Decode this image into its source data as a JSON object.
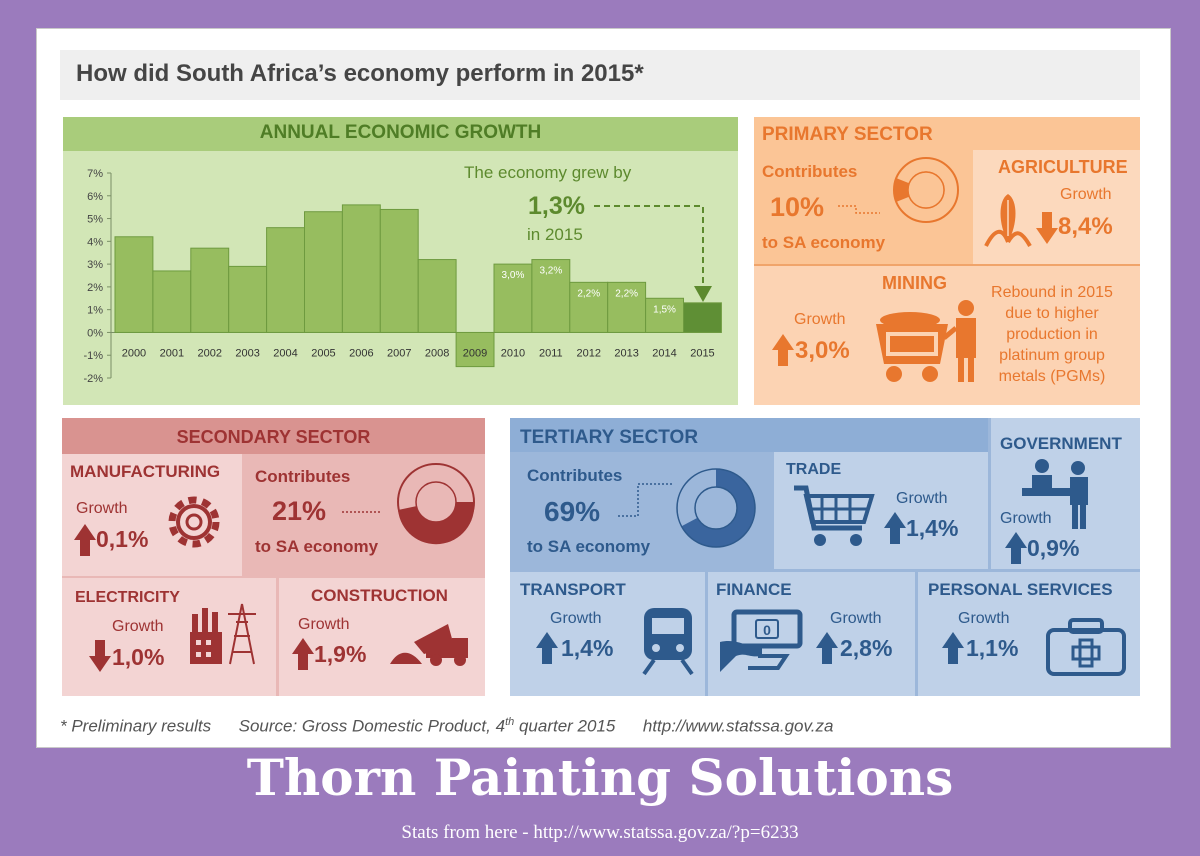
{
  "title": "How did South Africa’s economy perform in 2015*",
  "annual": {
    "title": "ANNUAL ECONOMIC GROWTH",
    "callout_line1": "The economy grew by",
    "callout_value": "1,3%",
    "callout_line3": "in 2015"
  },
  "chart_data": {
    "type": "bar",
    "title": "ANNUAL ECONOMIC GROWTH",
    "categories": [
      "2000",
      "2001",
      "2002",
      "2003",
      "2004",
      "2005",
      "2006",
      "2007",
      "2008",
      "2009",
      "2010",
      "2011",
      "2012",
      "2013",
      "2014",
      "2015"
    ],
    "values": [
      4.2,
      2.7,
      3.7,
      2.9,
      4.6,
      5.3,
      5.6,
      5.4,
      3.2,
      -1.5,
      3.0,
      3.2,
      2.2,
      2.2,
      1.5,
      1.3
    ],
    "data_labels": {
      "10": "3,0%",
      "11": "3,2%",
      "12": "2,2%",
      "13": "2,2%",
      "14": "1,5%"
    },
    "y_ticks": [
      "7%",
      "6%",
      "5%",
      "4%",
      "3%",
      "2%",
      "1%",
      "0%",
      "-1%",
      "-2%"
    ],
    "ylim": [
      -2,
      7
    ],
    "colors": {
      "bar": "#97bd5f",
      "negative": "#97bd5f",
      "highlight": "#5f8f35",
      "stroke": "#6e9a3f"
    }
  },
  "primary": {
    "title": "PRIMARY SECTOR",
    "contributes": "Contributes",
    "share": "10%",
    "to_economy": "to SA economy",
    "agriculture": {
      "title": "AGRICULTURE",
      "growth_label": "Growth",
      "value": "8,4%",
      "direction": "down"
    },
    "mining": {
      "title": "MINING",
      "growth_label": "Growth",
      "value": "3,0%",
      "direction": "up",
      "note": [
        "Rebound in 2015",
        "due to higher",
        "production in",
        "platinum group",
        "metals (PGMs)"
      ]
    }
  },
  "secondary": {
    "title": "SECONDARY SECTOR",
    "contributes": "Contributes",
    "share": "21%",
    "to_economy": "to SA economy",
    "manufacturing": {
      "title": "MANUFACTURING",
      "growth_label": "Growth",
      "value": "0,1%",
      "direction": "up"
    },
    "electricity": {
      "title": "ELECTRICITY",
      "growth_label": "Growth",
      "value": "1,0%",
      "direction": "down"
    },
    "construction": {
      "title": "CONSTRUCTION",
      "growth_label": "Growth",
      "value": "1,9%",
      "direction": "up"
    }
  },
  "tertiary": {
    "title": "TERTIARY SECTOR",
    "contributes": "Contributes",
    "share": "69%",
    "to_economy": "to SA economy",
    "trade": {
      "title": "TRADE",
      "growth_label": "Growth",
      "value": "1,4%"
    },
    "government": {
      "title": "GOVERNMENT",
      "growth_label": "Growth",
      "value": "0,9%"
    },
    "transport": {
      "title": "TRANSPORT",
      "growth_label": "Growth",
      "value": "1,4%"
    },
    "finance": {
      "title": "FINANCE",
      "growth_label": "Growth",
      "value": "2,8%",
      "display_digit": "0"
    },
    "personal": {
      "title": "PERSONAL SERVICES",
      "growth_label": "Growth",
      "value": "1,1%"
    }
  },
  "footnote": {
    "prelim": "* Preliminary results",
    "source_pre": "Source: Gross Domestic Product, 4",
    "source_sup": "th",
    "source_post": " quarter 2015",
    "url": "http://www.statssa.gov.za"
  },
  "brand": {
    "name": "Thorn Painting Solutions",
    "sub": "Stats from here  - http://www.statssa.gov.za/?p=6233"
  },
  "colors": {
    "primary": "#e8772e",
    "secondary": "#9e3333",
    "tertiary": "#2e5a8c",
    "annual": "#5d8a2e",
    "background": "#9b7bbd"
  }
}
